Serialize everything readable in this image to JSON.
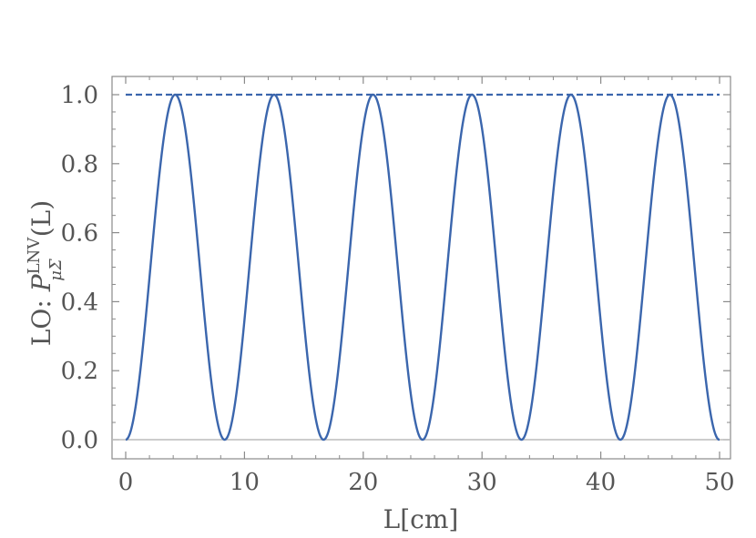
{
  "chart_data": {
    "type": "line",
    "xlabel": "L[cm]",
    "ylabel_prefix": "LO: ",
    "ylabel_symbol": "P",
    "ylabel_superscript": "LNV",
    "ylabel_subscript": "μΣ",
    "ylabel_suffix": "(L)",
    "xlim": [
      0,
      50
    ],
    "ylim": [
      0.0,
      1.0
    ],
    "xticks": [
      0,
      10,
      20,
      30,
      40,
      50
    ],
    "yticks": [
      0.0,
      0.2,
      0.4,
      0.6,
      0.8,
      1.0
    ],
    "xtick_labels": [
      "0",
      "10",
      "20",
      "30",
      "40",
      "50"
    ],
    "ytick_labels": [
      "0.0",
      "0.2",
      "0.4",
      "0.6",
      "0.8",
      "1.0"
    ],
    "grid": false,
    "series": [
      {
        "style": "solid",
        "color": "#3b66ad",
        "function": "sin^2(pi*L/8.33)",
        "period_cm": 8.33,
        "maxima_x": [
          4.2,
          12.5,
          20.8,
          29.2,
          37.5,
          45.8
        ],
        "minima_x": [
          0,
          8.3,
          16.7,
          25.0,
          33.3,
          41.7,
          50.0
        ]
      },
      {
        "style": "dashed",
        "color": "#3b66ad",
        "constant_y": 1.0
      }
    ],
    "zero_line_color": "#bbbbbb"
  }
}
